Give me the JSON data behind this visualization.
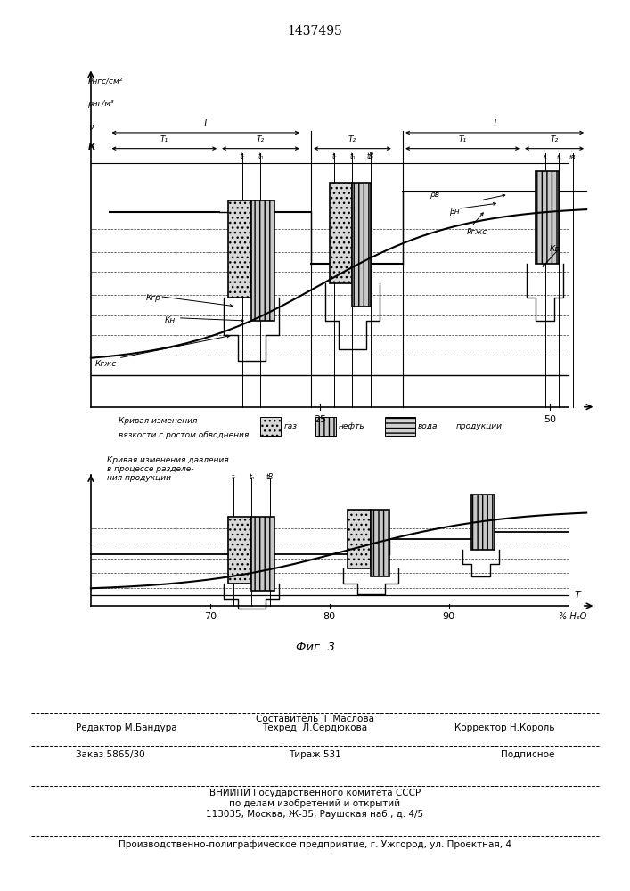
{
  "title": "1437495",
  "fig_label": "Фиг. 3",
  "background_color": "#ffffff",
  "top_ylabel1": "Pнгс/см²",
  "top_ylabel2": "ρнг/м³",
  "top_ylabel3": "ν",
  "top_ylabel4": "К",
  "footer_sestavitel": "Составитель  Г.Маслова",
  "footer_redaktor": "Редактор М.Бандура",
  "footer_tehred": "Техред  Л.Сердюкова",
  "footer_korrektor": "Корректор Н.Король",
  "footer_zakaz": "Заказ 5865/30",
  "footer_tirazh": "Тираж 531",
  "footer_podpisnoe": "Подписное",
  "footer_vniip1": "ВНИИПИ Государственного комитета СССР",
  "footer_vniip2": "по делам изобретений и открытий",
  "footer_vniip3": "113035, Москва, Ж-35, Раушская наб., д. 4/5",
  "footer_proizv": "Производственно-полиграфическое предприятие, г. Ужгород, ул. Проектная, 4"
}
